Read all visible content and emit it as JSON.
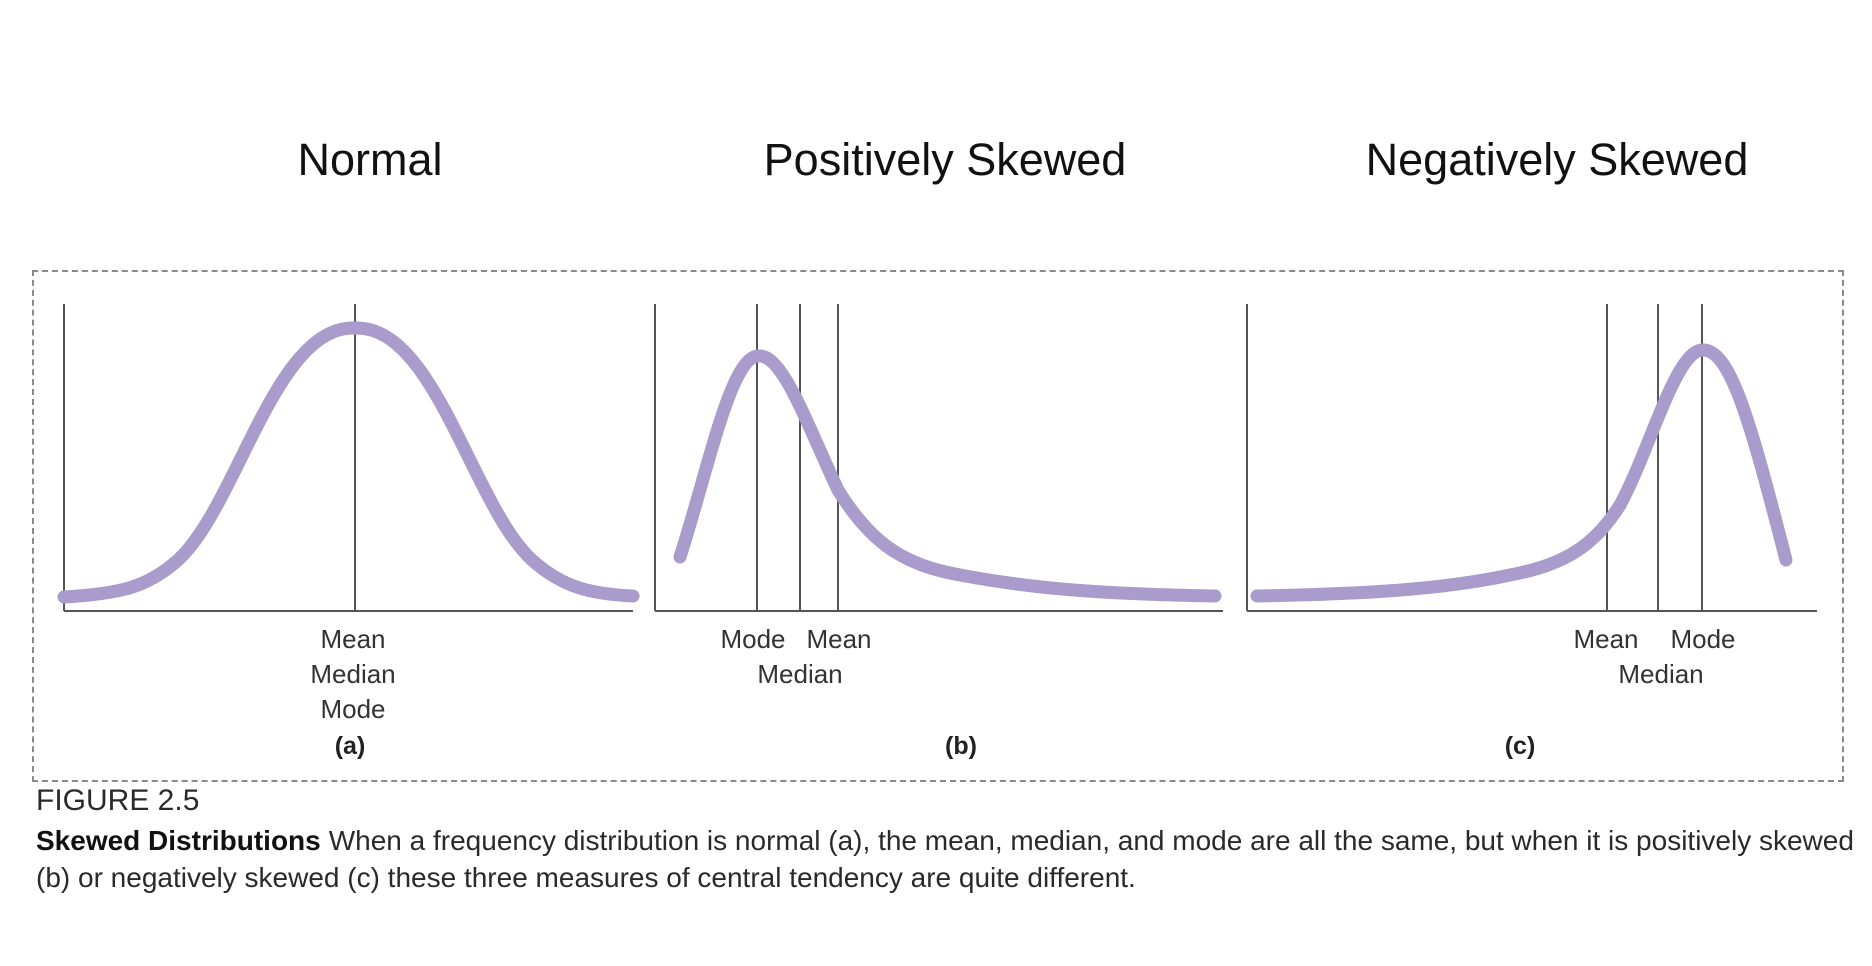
{
  "titles": {
    "a": "Normal",
    "b": "Positively Skewed",
    "c": "Negatively Skewed"
  },
  "panels": {
    "a": {
      "sublabel": "(a)",
      "labels": [
        "Mean",
        "Median",
        "Mode"
      ]
    },
    "b": {
      "sublabel": "(b)",
      "labels": [
        "Mode",
        "Mean",
        "Median"
      ]
    },
    "c": {
      "sublabel": "(c)",
      "labels": [
        "Mean",
        "Mode",
        "Median"
      ]
    }
  },
  "figure": {
    "number": "FIGURE 2.5",
    "caption_title": "Skewed Distributions",
    "caption_text": "When a frequency distribution is normal (a), the mean, median, and mode are all the same, but when it is positively skewed (b) or negatively skewed (c) these three measures of central tendency are quite different."
  },
  "colors": {
    "curve": "#a99bcb",
    "axis": "#555555",
    "frame": "#8a8a8a"
  }
}
